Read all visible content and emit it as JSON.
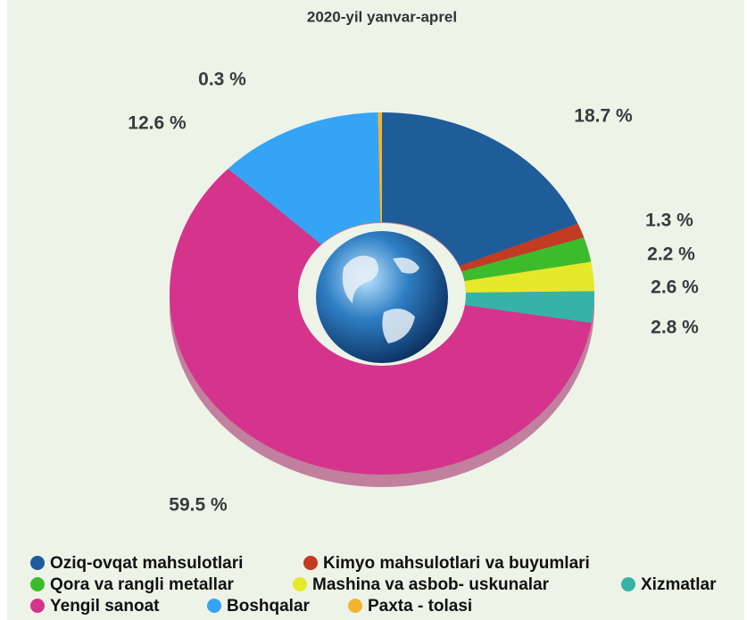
{
  "chart_data": {
    "type": "pie",
    "subtitle": "2020-yil yanvar-aprel",
    "categories": [
      "Oziq-ovqat mahsulotlari",
      "Kimyo mahsulotlari va buyumlari",
      "Qora va rangli metallar",
      "Mashina va asbob- uskunalar",
      "Xizmatlar",
      "Yengil sanoat",
      "Boshqalar",
      "Paxta - tolasi"
    ],
    "values": [
      18.7,
      1.3,
      2.2,
      2.6,
      2.8,
      59.5,
      12.6,
      0.3
    ],
    "value_labels": [
      "18.7 %",
      "1.3 %",
      "2.2 %",
      "2.6 %",
      "2.8 %",
      "59.5 %",
      "12.6 %",
      "0.3 %"
    ],
    "colors": [
      "#1f5c9a",
      "#c23b22",
      "#3cbc2c",
      "#e6e82a",
      "#35b3a6",
      "#d4348b",
      "#35a4f4",
      "#f4b431"
    ]
  }
}
